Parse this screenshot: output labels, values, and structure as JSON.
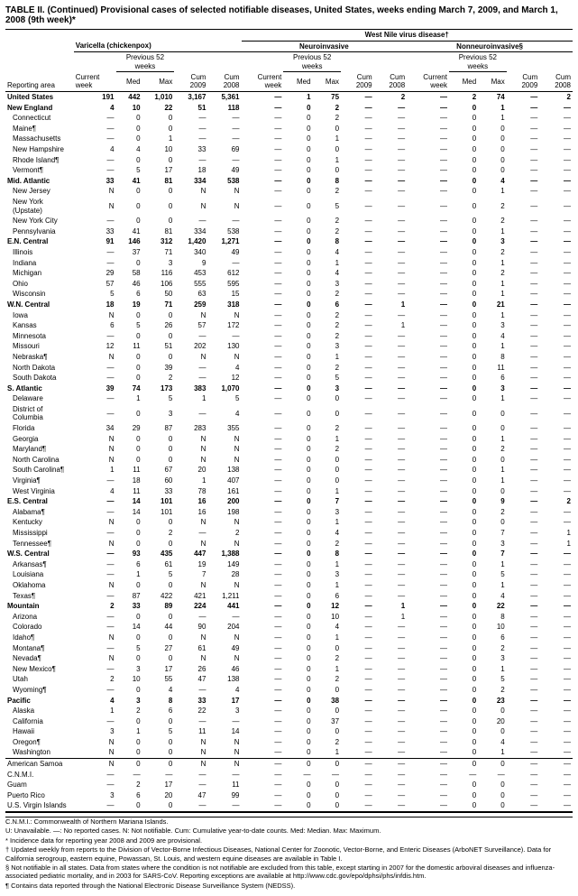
{
  "title": "TABLE II. (Continued) Provisional cases of selected notifiable diseases, United States, weeks ending March 7, 2009, and March 1, 2008 (9th week)*",
  "super_header": "West Nile virus disease†",
  "disease_groups": [
    "Varicella (chickenpox)",
    "Neuroinvasive",
    "Nonneuroinvasive§"
  ],
  "sub_header": "Previous 52 weeks",
  "col_labels": [
    "Reporting area",
    "Current week",
    "Med",
    "Max",
    "Cum 2009",
    "Cum 2008",
    "Current week",
    "Med",
    "Max",
    "Cum 2009",
    "Cum 2008",
    "Current week",
    "Med",
    "Max",
    "Cum 2009",
    "Cum 2008"
  ],
  "rows": [
    {
      "n": "United States",
      "b": 1,
      "i": 0,
      "c": [
        "191",
        "442",
        "1,010",
        "3,167",
        "5,361",
        "—",
        "1",
        "75",
        "—",
        "2",
        "—",
        "2",
        "74",
        "—",
        "2"
      ]
    },
    {
      "n": "New England",
      "b": 1,
      "i": 0,
      "c": [
        "4",
        "10",
        "22",
        "51",
        "118",
        "—",
        "0",
        "2",
        "—",
        "—",
        "—",
        "0",
        "1",
        "—",
        "—"
      ]
    },
    {
      "n": "Connecticut",
      "i": 1,
      "c": [
        "—",
        "0",
        "0",
        "—",
        "—",
        "—",
        "0",
        "2",
        "—",
        "—",
        "—",
        "0",
        "1",
        "—",
        "—"
      ]
    },
    {
      "n": "Maine¶",
      "i": 1,
      "c": [
        "—",
        "0",
        "0",
        "—",
        "—",
        "—",
        "0",
        "0",
        "—",
        "—",
        "—",
        "0",
        "0",
        "—",
        "—"
      ]
    },
    {
      "n": "Massachusetts",
      "i": 1,
      "c": [
        "—",
        "0",
        "1",
        "—",
        "—",
        "—",
        "0",
        "1",
        "—",
        "—",
        "—",
        "0",
        "0",
        "—",
        "—"
      ]
    },
    {
      "n": "New Hampshire",
      "i": 1,
      "c": [
        "4",
        "4",
        "10",
        "33",
        "69",
        "—",
        "0",
        "0",
        "—",
        "—",
        "—",
        "0",
        "0",
        "—",
        "—"
      ]
    },
    {
      "n": "Rhode Island¶",
      "i": 1,
      "c": [
        "—",
        "0",
        "0",
        "—",
        "—",
        "—",
        "0",
        "1",
        "—",
        "—",
        "—",
        "0",
        "0",
        "—",
        "—"
      ]
    },
    {
      "n": "Vermont¶",
      "i": 1,
      "c": [
        "—",
        "5",
        "17",
        "18",
        "49",
        "—",
        "0",
        "0",
        "—",
        "—",
        "—",
        "0",
        "0",
        "—",
        "—"
      ]
    },
    {
      "n": "Mid. Atlantic",
      "b": 1,
      "i": 0,
      "c": [
        "33",
        "41",
        "81",
        "334",
        "538",
        "—",
        "0",
        "8",
        "—",
        "—",
        "—",
        "0",
        "4",
        "—",
        "—"
      ]
    },
    {
      "n": "New Jersey",
      "i": 1,
      "c": [
        "N",
        "0",
        "0",
        "N",
        "N",
        "—",
        "0",
        "2",
        "—",
        "—",
        "—",
        "0",
        "1",
        "—",
        "—"
      ]
    },
    {
      "n": "New York (Upstate)",
      "i": 1,
      "c": [
        "N",
        "0",
        "0",
        "N",
        "N",
        "—",
        "0",
        "5",
        "—",
        "—",
        "—",
        "0",
        "2",
        "—",
        "—"
      ]
    },
    {
      "n": "New York City",
      "i": 1,
      "c": [
        "—",
        "0",
        "0",
        "—",
        "—",
        "—",
        "0",
        "2",
        "—",
        "—",
        "—",
        "0",
        "2",
        "—",
        "—"
      ]
    },
    {
      "n": "Pennsylvania",
      "i": 1,
      "c": [
        "33",
        "41",
        "81",
        "334",
        "538",
        "—",
        "0",
        "2",
        "—",
        "—",
        "—",
        "0",
        "1",
        "—",
        "—"
      ]
    },
    {
      "n": "E.N. Central",
      "b": 1,
      "i": 0,
      "c": [
        "91",
        "146",
        "312",
        "1,420",
        "1,271",
        "—",
        "0",
        "8",
        "—",
        "—",
        "—",
        "0",
        "3",
        "—",
        "—"
      ]
    },
    {
      "n": "Illinois",
      "i": 1,
      "c": [
        "—",
        "37",
        "71",
        "340",
        "49",
        "—",
        "0",
        "4",
        "—",
        "—",
        "—",
        "0",
        "2",
        "—",
        "—"
      ]
    },
    {
      "n": "Indiana",
      "i": 1,
      "c": [
        "—",
        "0",
        "3",
        "9",
        "—",
        "—",
        "0",
        "1",
        "—",
        "—",
        "—",
        "0",
        "1",
        "—",
        "—"
      ]
    },
    {
      "n": "Michigan",
      "i": 1,
      "c": [
        "29",
        "58",
        "116",
        "453",
        "612",
        "—",
        "0",
        "4",
        "—",
        "—",
        "—",
        "0",
        "2",
        "—",
        "—"
      ]
    },
    {
      "n": "Ohio",
      "i": 1,
      "c": [
        "57",
        "46",
        "106",
        "555",
        "595",
        "—",
        "0",
        "3",
        "—",
        "—",
        "—",
        "0",
        "1",
        "—",
        "—"
      ]
    },
    {
      "n": "Wisconsin",
      "i": 1,
      "c": [
        "5",
        "6",
        "50",
        "63",
        "15",
        "—",
        "0",
        "2",
        "—",
        "—",
        "—",
        "0",
        "1",
        "—",
        "—"
      ]
    },
    {
      "n": "W.N. Central",
      "b": 1,
      "i": 0,
      "c": [
        "18",
        "19",
        "71",
        "259",
        "318",
        "—",
        "0",
        "6",
        "—",
        "1",
        "—",
        "0",
        "21",
        "—",
        "—"
      ]
    },
    {
      "n": "Iowa",
      "i": 1,
      "c": [
        "N",
        "0",
        "0",
        "N",
        "N",
        "—",
        "0",
        "2",
        "—",
        "—",
        "—",
        "0",
        "1",
        "—",
        "—"
      ]
    },
    {
      "n": "Kansas",
      "i": 1,
      "c": [
        "6",
        "5",
        "26",
        "57",
        "172",
        "—",
        "0",
        "2",
        "—",
        "1",
        "—",
        "0",
        "3",
        "—",
        "—"
      ]
    },
    {
      "n": "Minnesota",
      "i": 1,
      "c": [
        "—",
        "0",
        "0",
        "—",
        "—",
        "—",
        "0",
        "2",
        "—",
        "—",
        "—",
        "0",
        "4",
        "—",
        "—"
      ]
    },
    {
      "n": "Missouri",
      "i": 1,
      "c": [
        "12",
        "11",
        "51",
        "202",
        "130",
        "—",
        "0",
        "3",
        "—",
        "—",
        "—",
        "0",
        "1",
        "—",
        "—"
      ]
    },
    {
      "n": "Nebraska¶",
      "i": 1,
      "c": [
        "N",
        "0",
        "0",
        "N",
        "N",
        "—",
        "0",
        "1",
        "—",
        "—",
        "—",
        "0",
        "8",
        "—",
        "—"
      ]
    },
    {
      "n": "North Dakota",
      "i": 1,
      "c": [
        "—",
        "0",
        "39",
        "—",
        "4",
        "—",
        "0",
        "2",
        "—",
        "—",
        "—",
        "0",
        "11",
        "—",
        "—"
      ]
    },
    {
      "n": "South Dakota",
      "i": 1,
      "c": [
        "—",
        "0",
        "2",
        "—",
        "12",
        "—",
        "0",
        "5",
        "—",
        "—",
        "—",
        "0",
        "6",
        "—",
        "—"
      ]
    },
    {
      "n": "S. Atlantic",
      "b": 1,
      "i": 0,
      "c": [
        "39",
        "74",
        "173",
        "383",
        "1,070",
        "—",
        "0",
        "3",
        "—",
        "—",
        "—",
        "0",
        "3",
        "—",
        "—"
      ]
    },
    {
      "n": "Delaware",
      "i": 1,
      "c": [
        "—",
        "1",
        "5",
        "1",
        "5",
        "—",
        "0",
        "0",
        "—",
        "—",
        "—",
        "0",
        "1",
        "—",
        "—"
      ]
    },
    {
      "n": "District of Columbia",
      "i": 1,
      "c": [
        "—",
        "0",
        "3",
        "—",
        "4",
        "—",
        "0",
        "0",
        "—",
        "—",
        "—",
        "0",
        "0",
        "—",
        "—"
      ]
    },
    {
      "n": "Florida",
      "i": 1,
      "c": [
        "34",
        "29",
        "87",
        "283",
        "355",
        "—",
        "0",
        "2",
        "—",
        "—",
        "—",
        "0",
        "0",
        "—",
        "—"
      ]
    },
    {
      "n": "Georgia",
      "i": 1,
      "c": [
        "N",
        "0",
        "0",
        "N",
        "N",
        "—",
        "0",
        "1",
        "—",
        "—",
        "—",
        "0",
        "1",
        "—",
        "—"
      ]
    },
    {
      "n": "Maryland¶",
      "i": 1,
      "c": [
        "N",
        "0",
        "0",
        "N",
        "N",
        "—",
        "0",
        "2",
        "—",
        "—",
        "—",
        "0",
        "2",
        "—",
        "—"
      ]
    },
    {
      "n": "North Carolina",
      "i": 1,
      "c": [
        "N",
        "0",
        "0",
        "N",
        "N",
        "—",
        "0",
        "0",
        "—",
        "—",
        "—",
        "0",
        "0",
        "—",
        "—"
      ]
    },
    {
      "n": "South Carolina¶",
      "i": 1,
      "c": [
        "1",
        "11",
        "67",
        "20",
        "138",
        "—",
        "0",
        "0",
        "—",
        "—",
        "—",
        "0",
        "1",
        "—",
        "—"
      ]
    },
    {
      "n": "Virginia¶",
      "i": 1,
      "c": [
        "—",
        "18",
        "60",
        "1",
        "407",
        "—",
        "0",
        "0",
        "—",
        "—",
        "—",
        "0",
        "1",
        "—",
        "—"
      ]
    },
    {
      "n": "West Virginia",
      "i": 1,
      "c": [
        "4",
        "11",
        "33",
        "78",
        "161",
        "—",
        "0",
        "1",
        "—",
        "—",
        "—",
        "0",
        "0",
        "—",
        "—"
      ]
    },
    {
      "n": "E.S. Central",
      "b": 1,
      "i": 0,
      "c": [
        "—",
        "14",
        "101",
        "16",
        "200",
        "—",
        "0",
        "7",
        "—",
        "—",
        "—",
        "0",
        "9",
        "—",
        "2"
      ]
    },
    {
      "n": "Alabama¶",
      "i": 1,
      "c": [
        "—",
        "14",
        "101",
        "16",
        "198",
        "—",
        "0",
        "3",
        "—",
        "—",
        "—",
        "0",
        "2",
        "—",
        "—"
      ]
    },
    {
      "n": "Kentucky",
      "i": 1,
      "c": [
        "N",
        "0",
        "0",
        "N",
        "N",
        "—",
        "0",
        "1",
        "—",
        "—",
        "—",
        "0",
        "0",
        "—",
        "—"
      ]
    },
    {
      "n": "Mississippi",
      "i": 1,
      "c": [
        "—",
        "0",
        "2",
        "—",
        "2",
        "—",
        "0",
        "4",
        "—",
        "—",
        "—",
        "0",
        "7",
        "—",
        "1"
      ]
    },
    {
      "n": "Tennessee¶",
      "i": 1,
      "c": [
        "N",
        "0",
        "0",
        "N",
        "N",
        "—",
        "0",
        "2",
        "—",
        "—",
        "—",
        "0",
        "3",
        "—",
        "1"
      ]
    },
    {
      "n": "W.S. Central",
      "b": 1,
      "i": 0,
      "c": [
        "—",
        "93",
        "435",
        "447",
        "1,388",
        "—",
        "0",
        "8",
        "—",
        "—",
        "—",
        "0",
        "7",
        "—",
        "—"
      ]
    },
    {
      "n": "Arkansas¶",
      "i": 1,
      "c": [
        "—",
        "6",
        "61",
        "19",
        "149",
        "—",
        "0",
        "1",
        "—",
        "—",
        "—",
        "0",
        "1",
        "—",
        "—"
      ]
    },
    {
      "n": "Louisiana",
      "i": 1,
      "c": [
        "—",
        "1",
        "5",
        "7",
        "28",
        "—",
        "0",
        "3",
        "—",
        "—",
        "—",
        "0",
        "5",
        "—",
        "—"
      ]
    },
    {
      "n": "Oklahoma",
      "i": 1,
      "c": [
        "N",
        "0",
        "0",
        "N",
        "N",
        "—",
        "0",
        "1",
        "—",
        "—",
        "—",
        "0",
        "1",
        "—",
        "—"
      ]
    },
    {
      "n": "Texas¶",
      "i": 1,
      "c": [
        "—",
        "87",
        "422",
        "421",
        "1,211",
        "—",
        "0",
        "6",
        "—",
        "—",
        "—",
        "0",
        "4",
        "—",
        "—"
      ]
    },
    {
      "n": "Mountain",
      "b": 1,
      "i": 0,
      "c": [
        "2",
        "33",
        "89",
        "224",
        "441",
        "—",
        "0",
        "12",
        "—",
        "1",
        "—",
        "0",
        "22",
        "—",
        "—"
      ]
    },
    {
      "n": "Arizona",
      "i": 1,
      "c": [
        "—",
        "0",
        "0",
        "—",
        "—",
        "—",
        "0",
        "10",
        "—",
        "1",
        "—",
        "0",
        "8",
        "—",
        "—"
      ]
    },
    {
      "n": "Colorado",
      "i": 1,
      "c": [
        "—",
        "14",
        "44",
        "90",
        "204",
        "—",
        "0",
        "4",
        "—",
        "—",
        "—",
        "0",
        "10",
        "—",
        "—"
      ]
    },
    {
      "n": "Idaho¶",
      "i": 1,
      "c": [
        "N",
        "0",
        "0",
        "N",
        "N",
        "—",
        "0",
        "1",
        "—",
        "—",
        "—",
        "0",
        "6",
        "—",
        "—"
      ]
    },
    {
      "n": "Montana¶",
      "i": 1,
      "c": [
        "—",
        "5",
        "27",
        "61",
        "49",
        "—",
        "0",
        "0",
        "—",
        "—",
        "—",
        "0",
        "2",
        "—",
        "—"
      ]
    },
    {
      "n": "Nevada¶",
      "i": 1,
      "c": [
        "N",
        "0",
        "0",
        "N",
        "N",
        "—",
        "0",
        "2",
        "—",
        "—",
        "—",
        "0",
        "3",
        "—",
        "—"
      ]
    },
    {
      "n": "New Mexico¶",
      "i": 1,
      "c": [
        "—",
        "3",
        "17",
        "26",
        "46",
        "—",
        "0",
        "1",
        "—",
        "—",
        "—",
        "0",
        "1",
        "—",
        "—"
      ]
    },
    {
      "n": "Utah",
      "i": 1,
      "c": [
        "2",
        "10",
        "55",
        "47",
        "138",
        "—",
        "0",
        "2",
        "—",
        "—",
        "—",
        "0",
        "5",
        "—",
        "—"
      ]
    },
    {
      "n": "Wyoming¶",
      "i": 1,
      "c": [
        "—",
        "0",
        "4",
        "—",
        "4",
        "—",
        "0",
        "0",
        "—",
        "—",
        "—",
        "0",
        "2",
        "—",
        "—"
      ]
    },
    {
      "n": "Pacific",
      "b": 1,
      "i": 0,
      "c": [
        "4",
        "3",
        "8",
        "33",
        "17",
        "—",
        "0",
        "38",
        "—",
        "—",
        "—",
        "0",
        "23",
        "—",
        "—"
      ]
    },
    {
      "n": "Alaska",
      "i": 1,
      "c": [
        "1",
        "2",
        "6",
        "22",
        "3",
        "—",
        "0",
        "0",
        "—",
        "—",
        "—",
        "0",
        "0",
        "—",
        "—"
      ]
    },
    {
      "n": "California",
      "i": 1,
      "c": [
        "—",
        "0",
        "0",
        "—",
        "—",
        "—",
        "0",
        "37",
        "—",
        "—",
        "—",
        "0",
        "20",
        "—",
        "—"
      ]
    },
    {
      "n": "Hawaii",
      "i": 1,
      "c": [
        "3",
        "1",
        "5",
        "11",
        "14",
        "—",
        "0",
        "0",
        "—",
        "—",
        "—",
        "0",
        "0",
        "—",
        "—"
      ]
    },
    {
      "n": "Oregon¶",
      "i": 1,
      "c": [
        "N",
        "0",
        "0",
        "N",
        "N",
        "—",
        "0",
        "2",
        "—",
        "—",
        "—",
        "0",
        "4",
        "—",
        "—"
      ]
    },
    {
      "n": "Washington",
      "i": 1,
      "c": [
        "N",
        "0",
        "0",
        "N",
        "N",
        "—",
        "0",
        "1",
        "—",
        "—",
        "—",
        "0",
        "1",
        "—",
        "—"
      ]
    },
    {
      "n": "American Samoa",
      "b": 0,
      "i": 0,
      "top": 1,
      "c": [
        "N",
        "0",
        "0",
        "N",
        "N",
        "—",
        "0",
        "0",
        "—",
        "—",
        "—",
        "0",
        "0",
        "—",
        "—"
      ]
    },
    {
      "n": "C.N.M.I.",
      "i": 0,
      "c": [
        "—",
        "—",
        "—",
        "—",
        "—",
        "—",
        "—",
        "—",
        "—",
        "—",
        "—",
        "—",
        "—",
        "—",
        "—"
      ]
    },
    {
      "n": "Guam",
      "i": 0,
      "c": [
        "—",
        "2",
        "17",
        "—",
        "11",
        "—",
        "0",
        "0",
        "—",
        "—",
        "—",
        "0",
        "0",
        "—",
        "—"
      ]
    },
    {
      "n": "Puerto Rico",
      "i": 0,
      "c": [
        "3",
        "6",
        "20",
        "47",
        "99",
        "—",
        "0",
        "0",
        "—",
        "—",
        "—",
        "0",
        "0",
        "—",
        "—"
      ]
    },
    {
      "n": "U.S. Virgin Islands",
      "i": 0,
      "c": [
        "—",
        "0",
        "0",
        "—",
        "—",
        "—",
        "0",
        "0",
        "—",
        "—",
        "—",
        "0",
        "0",
        "—",
        "—"
      ]
    }
  ],
  "footnotes": [
    "C.N.M.I.: Commonwealth of Northern Mariana Islands.",
    "U: Unavailable.    —: No reported cases.    N: Not notifiable.    Cum: Cumulative year-to-date counts.    Med: Median.    Max: Maximum.",
    "* Incidence data for reporting year 2008 and 2009 are provisional.",
    "† Updated weekly from reports to the Division of Vector-Borne Infectious Diseases, National Center for Zoonotic, Vector-Borne, and Enteric Diseases (ArboNET Surveillance). Data for California serogroup, eastern equine, Powassan, St. Louis, and western equine diseases are available in Table I.",
    "§ Not notifiable in all states. Data from states where the condition is not notifiable are excluded from this table, except starting in 2007 for the domestic arboviral diseases and influenza-associated pediatric mortality, and in 2003 for SARS-CoV. Reporting exceptions are available at http://www.cdc.gov/epo/dphsi/phs/infdis.htm.",
    "¶ Contains data reported through the National Electronic Disease Surveillance System (NEDSS)."
  ]
}
